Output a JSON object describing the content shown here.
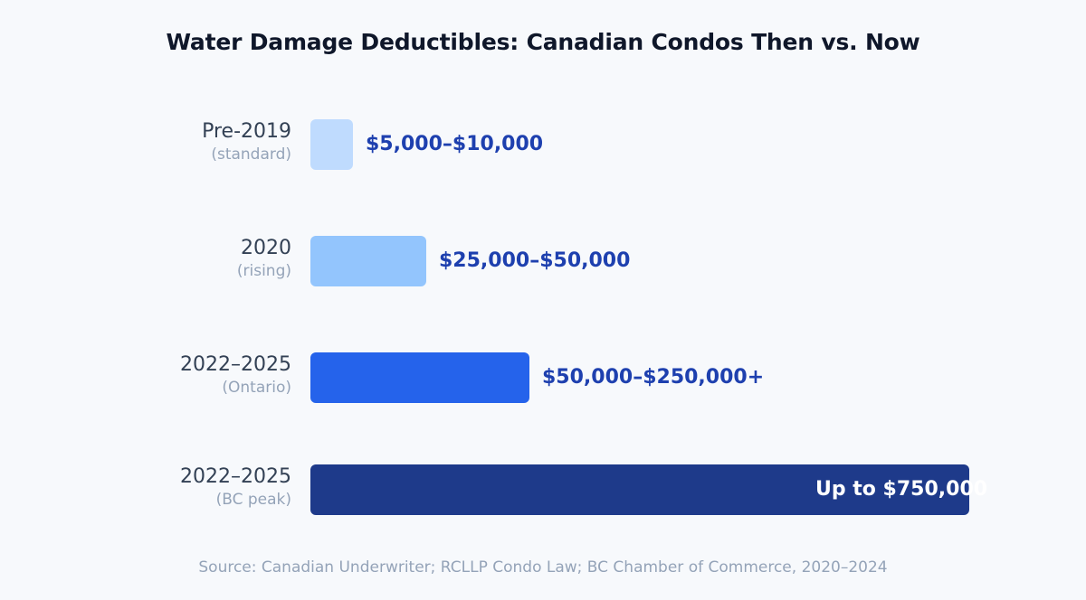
{
  "chart_data": {
    "type": "bar",
    "orientation": "horizontal",
    "title": "Water Damage Deductibles: Canadian Condos Then vs. Now",
    "categories": [
      {
        "label": "Pre-2019",
        "sublabel": "(standard)"
      },
      {
        "label": "2020",
        "sublabel": "(rising)"
      },
      {
        "label": "2022–2025",
        "sublabel": "(Ontario)"
      },
      {
        "label": "2022–2025",
        "sublabel": "(BC peak)"
      }
    ],
    "values": [
      10000,
      50000,
      250000,
      750000
    ],
    "value_labels": [
      "$5,000–$10,000",
      "$25,000–$50,000",
      "$50,000–$250,000+",
      "Up to $750,000"
    ],
    "colors": [
      "#bfdbfe",
      "#93c5fd",
      "#2563eb",
      "#1e3a8a"
    ],
    "xlim": [
      0,
      750000
    ],
    "grid": false,
    "source": "Source: Canadian Underwriter; RCLLP Condo Law; BC Chamber of Commerce, 2020–2024"
  }
}
